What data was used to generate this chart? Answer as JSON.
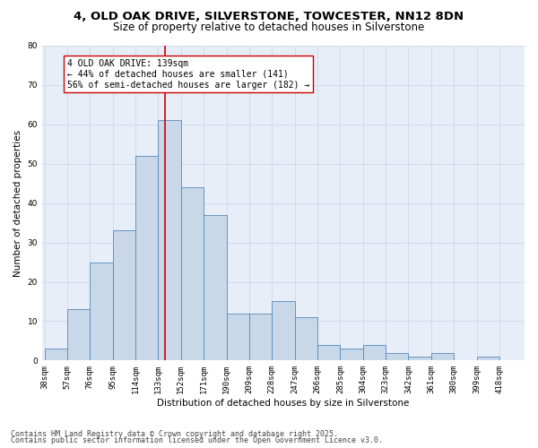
{
  "title_line1": "4, OLD OAK DRIVE, SILVERSTONE, TOWCESTER, NN12 8DN",
  "title_line2": "Size of property relative to detached houses in Silverstone",
  "xlabel": "Distribution of detached houses by size in Silverstone",
  "ylabel": "Number of detached properties",
  "bins": [
    "38sqm",
    "57sqm",
    "76sqm",
    "95sqm",
    "114sqm",
    "133sqm",
    "152sqm",
    "171sqm",
    "190sqm",
    "209sqm",
    "228sqm",
    "247sqm",
    "266sqm",
    "285sqm",
    "304sqm",
    "323sqm",
    "342sqm",
    "361sqm",
    "380sqm",
    "399sqm",
    "418sqm"
  ],
  "bin_edges": [
    38,
    57,
    76,
    95,
    114,
    133,
    152,
    171,
    190,
    209,
    228,
    247,
    266,
    285,
    304,
    323,
    342,
    361,
    380,
    399,
    418
  ],
  "values": [
    3,
    13,
    25,
    33,
    52,
    61,
    44,
    37,
    12,
    12,
    15,
    11,
    4,
    3,
    4,
    2,
    1,
    2,
    0,
    1,
    0
  ],
  "bar_color": "#c8d8e8",
  "bar_edge_color": "#5588bb",
  "reference_line_x": 139,
  "reference_line_color": "#cc0000",
  "annotation_text": "4 OLD OAK DRIVE: 139sqm\n← 44% of detached houses are smaller (141)\n56% of semi-detached houses are larger (182) →",
  "annotation_box_color": "#ffffff",
  "annotation_box_edge": "#cc0000",
  "ylim": [
    0,
    80
  ],
  "yticks": [
    0,
    10,
    20,
    30,
    40,
    50,
    60,
    70,
    80
  ],
  "grid_color": "#d0d8e8",
  "background_color": "#e8eef8",
  "footer_line1": "Contains HM Land Registry data © Crown copyright and database right 2025.",
  "footer_line2": "Contains public sector information licensed under the Open Government Licence v3.0.",
  "title_fontsize": 9.5,
  "subtitle_fontsize": 8.5,
  "axis_label_fontsize": 7.5,
  "tick_fontsize": 6.5,
  "annotation_fontsize": 7,
  "footer_fontsize": 6
}
